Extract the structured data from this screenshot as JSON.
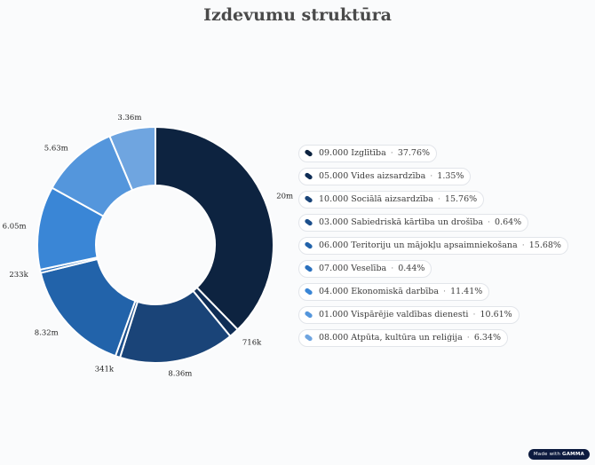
{
  "page": {
    "title": "Izdevumu struktūra",
    "badge_prefix": "Made with",
    "badge_brand": "GAMMA"
  },
  "chart_data": {
    "type": "pie",
    "donut": true,
    "legend_position": "right",
    "slices": [
      {
        "name": "09.000 Izglītība",
        "percent": "37.76%",
        "label": "20m",
        "value": 20,
        "color": "#0d2340"
      },
      {
        "name": "05.000 Vides aizsardzība",
        "percent": "1.35%",
        "label": "716k",
        "value": 0.716,
        "color": "#0f2d55"
      },
      {
        "name": "10.000 Sociālā aizsardzība",
        "percent": "15.76%",
        "label": "8.36m",
        "value": 8.36,
        "color": "#1a4478"
      },
      {
        "name": "03.000 Sabiedriskā kārtība un drošība",
        "percent": "0.64%",
        "label": "341k",
        "value": 0.341,
        "color": "#1c4f8c"
      },
      {
        "name": "06.000 Teritoriju un mājokļu apsaimniekošana",
        "percent": "15.68%",
        "label": "8.32m",
        "value": 8.32,
        "color": "#2263aa"
      },
      {
        "name": "07.000 Veselība",
        "percent": "0.44%",
        "label": "233k",
        "value": 0.233,
        "color": "#2a70bd"
      },
      {
        "name": "04.000 Ekonomiskā darbība",
        "percent": "11.41%",
        "label": "6.05m",
        "value": 6.05,
        "color": "#3a86d6"
      },
      {
        "name": "01.000 Vispārējie valdības dienesti",
        "percent": "10.61%",
        "label": "5.63m",
        "value": 5.63,
        "color": "#5496dc"
      },
      {
        "name": "08.000 Atpūta, kultūra un reliģija",
        "percent": "6.34%",
        "label": "3.36m",
        "value": 3.36,
        "color": "#6fa5e0"
      }
    ]
  }
}
